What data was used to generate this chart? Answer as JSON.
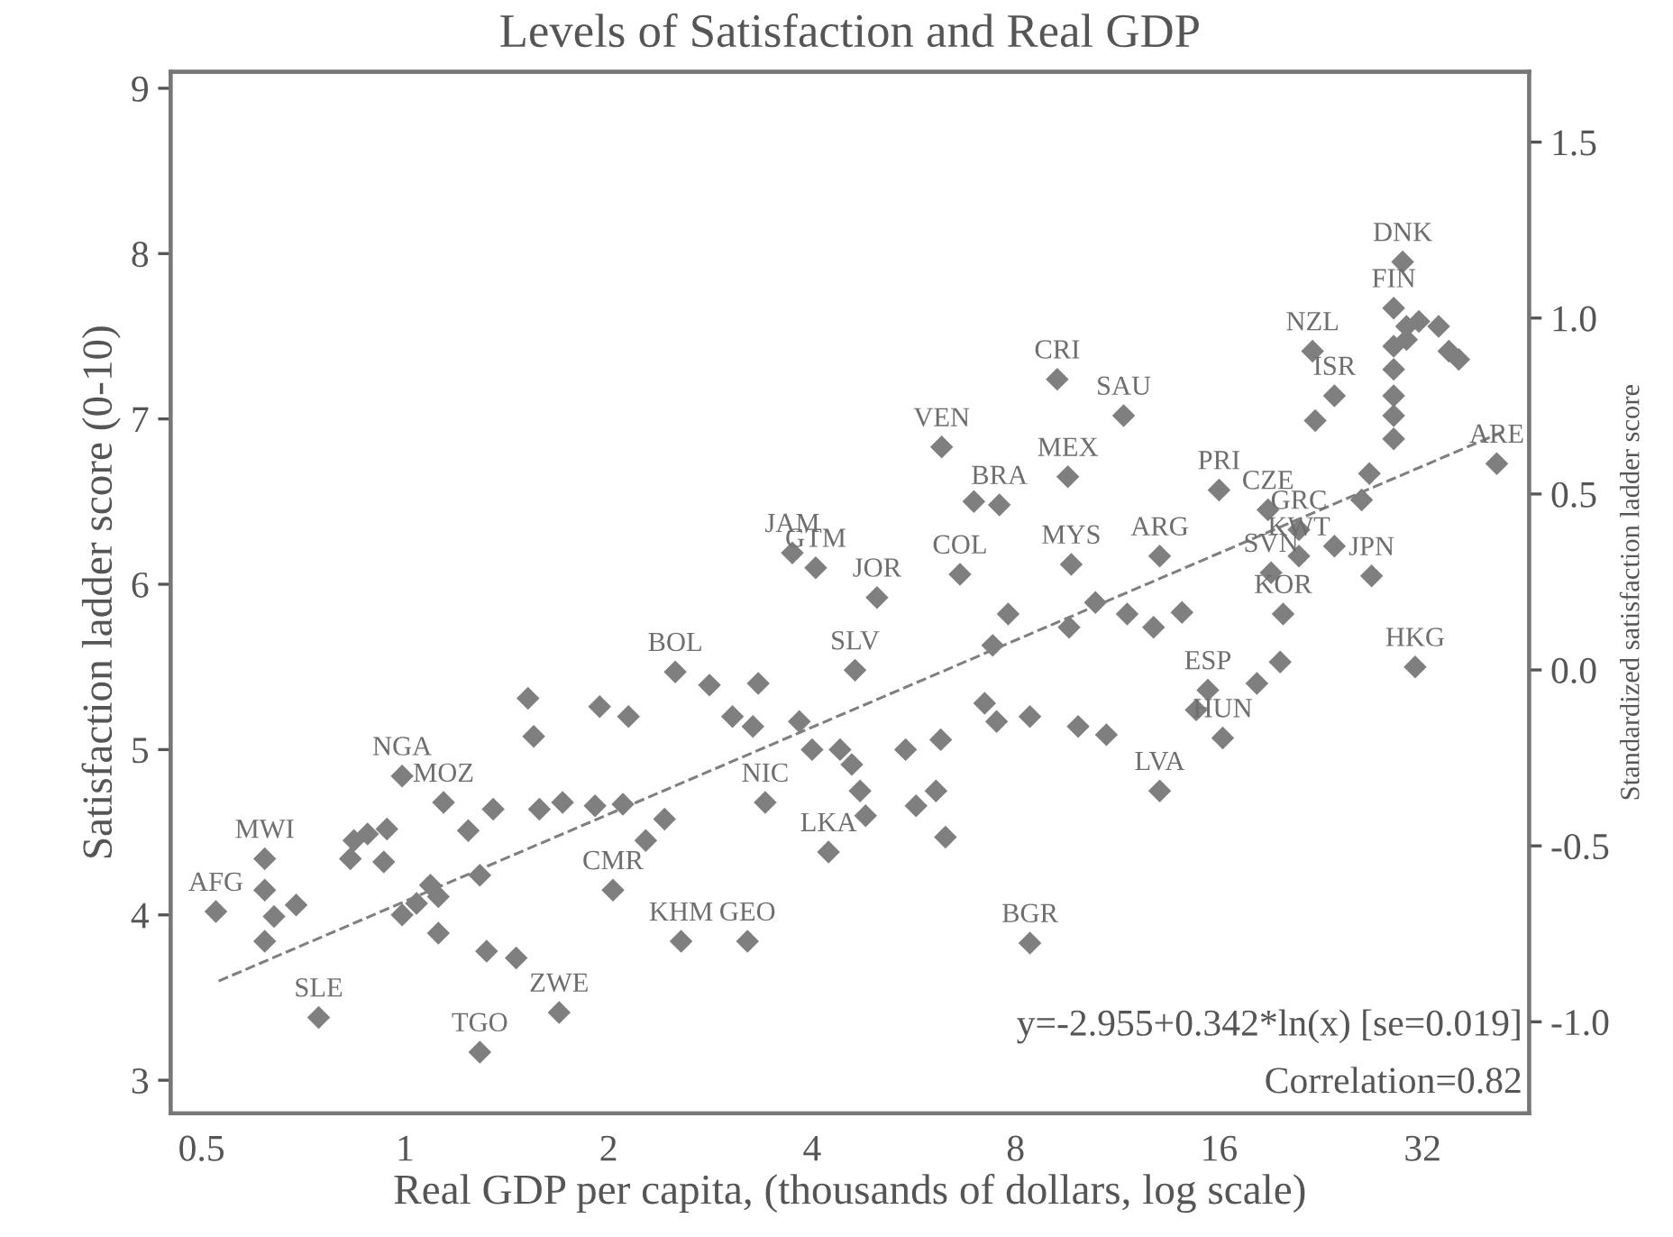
{
  "chart_data": {
    "type": "scatter",
    "title": "Levels of Satisfaction and Real GDP",
    "xlabel": "Real GDP per capita, (thousands of dollars, log scale)",
    "ylabel": "Satisfaction ladder score (0-10)",
    "y2label": "Standardized satisfaction ladder score",
    "log": "x",
    "grid": false,
    "legend": false,
    "marker": "diamond",
    "xlim": [
      0.45,
      46
    ],
    "xticks": [
      0.5,
      1,
      2,
      4,
      8,
      16,
      32
    ],
    "ylim": [
      2.8,
      9.1
    ],
    "yticks": [
      3,
      4,
      5,
      6,
      7,
      8,
      9
    ],
    "y2lim": [
      -1.26,
      1.7
    ],
    "y2ticks": [
      {
        "value": -1,
        "label": "-1.0"
      },
      -0.5,
      {
        "value": 0,
        "label": "0.0"
      },
      0.5,
      {
        "value": 1,
        "label": "1.0"
      },
      1.5
    ],
    "series": [
      {
        "color": "#7f7f7f",
        "x": [
          0.525,
          0.62,
          0.745,
          0.99,
          1.29,
          1.69,
          2.03,
          2.56,
          3.21,
          2.51,
          4.63,
          3.41,
          4.23,
          4.99,
          3.74,
          4.05,
          6.22,
          6.94,
          7.57,
          9.22,
          11.56,
          9.56,
          6.62,
          9.67,
          13.07,
          16,
          13.07,
          31.2,
          26.9,
          19.1,
          19.9,
          16.2,
          15.4,
          14.8,
          41.2,
          29.9,
          22.0,
          23.7,
          22.2,
          18.9,
          21.0,
          21.0,
          23.7,
          26.0,
          26.7,
          29.0,
          29.0,
          29.0,
          29.0,
          29.0,
          29.0,
          31.6,
          33.8,
          36.2,
          35.0,
          30.3,
          30.3,
          0.62,
          0.64,
          0.62,
          0.69,
          0.84,
          0.83,
          0.88,
          0.94,
          0.93,
          0.99,
          1.04,
          1.09,
          1.12,
          1.12,
          1.14,
          1.24,
          1.29,
          1.35,
          1.32,
          1.46,
          1.55,
          1.58,
          1.71,
          1.52,
          1.94,
          2.14,
          1.91,
          2.1,
          2.27,
          2.42,
          2.82,
          3.33,
          3.05,
          3.27,
          4.0,
          4.4,
          3.83,
          4.58,
          4.71,
          4.8,
          5.5,
          5.7,
          6.3,
          6.1,
          6.2,
          7.2,
          7.5,
          8.4,
          7.4,
          7.8,
          8.4,
          9.9,
          10.9,
          9.6,
          11.7,
          12.8,
          14.1,
          10.5,
          18.2,
          19.7
        ],
        "values": [
          4.02,
          4.34,
          3.38,
          4.84,
          3.17,
          3.41,
          4.15,
          3.84,
          3.84,
          5.47,
          5.48,
          4.68,
          4.38,
          5.92,
          6.19,
          6.1,
          6.83,
          6.5,
          6.48,
          7.24,
          7.02,
          6.65,
          6.06,
          6.12,
          6.17,
          6.57,
          4.75,
          5.5,
          6.05,
          6.07,
          5.82,
          5.07,
          5.36,
          5.24,
          6.73,
          7.95,
          7.41,
          7.14,
          6.99,
          6.45,
          6.33,
          6.17,
          6.23,
          6.51,
          6.67,
          7.67,
          7.44,
          7.3,
          7.14,
          7.02,
          6.88,
          7.59,
          7.56,
          7.36,
          7.41,
          7.56,
          7.48,
          4.15,
          3.99,
          3.84,
          4.06,
          4.45,
          4.34,
          4.49,
          4.52,
          4.32,
          4.0,
          4.07,
          4.18,
          4.11,
          3.89,
          4.68,
          4.51,
          4.24,
          4.64,
          3.78,
          3.74,
          5.08,
          4.64,
          4.68,
          5.31,
          5.26,
          5.2,
          4.66,
          4.67,
          4.45,
          4.58,
          5.39,
          5.4,
          5.2,
          5.14,
          5.0,
          5.0,
          5.17,
          4.91,
          4.75,
          4.6,
          5.0,
          4.66,
          4.47,
          4.75,
          5.06,
          5.28,
          5.17,
          5.2,
          5.63,
          5.82,
          3.83,
          5.14,
          5.09,
          5.74,
          5.82,
          5.74,
          5.83,
          5.89,
          5.4,
          5.53
        ]
      },
      {
        "type": "line",
        "color": "#7f7f7f",
        "line_style": "dashed",
        "marker": "none",
        "x": [
          0.53,
          42.5
        ],
        "values": [
          3.6,
          6.93
        ]
      }
    ],
    "annotations": [
      {
        "text": "AFG",
        "x": 0.525,
        "y": 4.02
      },
      {
        "text": "MWI",
        "x": 0.62,
        "y": 4.34
      },
      {
        "text": "SLE",
        "x": 0.745,
        "y": 3.38
      },
      {
        "text": "NGA",
        "x": 0.99,
        "y": 4.84
      },
      {
        "text": "MOZ",
        "x": 1.14,
        "y": 4.68
      },
      {
        "text": "TGO",
        "x": 1.29,
        "y": 3.17
      },
      {
        "text": "ZWE",
        "x": 1.69,
        "y": 3.41
      },
      {
        "text": "CMR",
        "x": 2.03,
        "y": 4.15
      },
      {
        "text": "KHM",
        "x": 2.56,
        "y": 3.84
      },
      {
        "text": "GEO",
        "x": 3.21,
        "y": 3.84
      },
      {
        "text": "BOL",
        "x": 2.51,
        "y": 5.47
      },
      {
        "text": "SLV",
        "x": 4.63,
        "y": 5.48
      },
      {
        "text": "NIC",
        "x": 3.41,
        "y": 4.68
      },
      {
        "text": "LKA",
        "x": 4.23,
        "y": 4.38
      },
      {
        "text": "JOR",
        "x": 4.99,
        "y": 5.92
      },
      {
        "text": "JAM",
        "x": 3.74,
        "y": 6.19
      },
      {
        "text": "GTM",
        "x": 4.05,
        "y": 6.1
      },
      {
        "text": "VEN",
        "x": 6.22,
        "y": 6.83
      },
      {
        "text": "BRA",
        "x": 7.57,
        "y": 6.48
      },
      {
        "text": "CRI",
        "x": 9.22,
        "y": 7.24
      },
      {
        "text": "SAU",
        "x": 11.56,
        "y": 7.02
      },
      {
        "text": "MEX",
        "x": 9.56,
        "y": 6.65
      },
      {
        "text": "COL",
        "x": 6.62,
        "y": 6.06
      },
      {
        "text": "MYS",
        "x": 9.67,
        "y": 6.12
      },
      {
        "text": "ARG",
        "x": 13.07,
        "y": 6.17
      },
      {
        "text": "PRI",
        "x": 16,
        "y": 6.57
      },
      {
        "text": "LVA",
        "x": 13.07,
        "y": 4.75
      },
      {
        "text": "BGR",
        "x": 8.4,
        "y": 3.83
      },
      {
        "text": "HKG",
        "x": 31.2,
        "y": 5.5
      },
      {
        "text": "JPN",
        "x": 26.9,
        "y": 6.05
      },
      {
        "text": "SVN",
        "x": 19.1,
        "y": 6.07
      },
      {
        "text": "KOR",
        "x": 19.9,
        "y": 5.82
      },
      {
        "text": "HUN",
        "x": 16.2,
        "y": 5.07
      },
      {
        "text": "ESP",
        "x": 15.4,
        "y": 5.36
      },
      {
        "text": "ARE",
        "x": 41.2,
        "y": 6.73
      },
      {
        "text": "DNK",
        "x": 29.9,
        "y": 7.95
      },
      {
        "text": "FIN",
        "x": 29.0,
        "y": 7.67
      },
      {
        "text": "NZL",
        "x": 22.0,
        "y": 7.41
      },
      {
        "text": "ISR",
        "x": 23.7,
        "y": 7.14
      },
      {
        "text": "CZE",
        "x": 18.9,
        "y": 6.45
      },
      {
        "text": "GRC",
        "x": 21.0,
        "y": 6.33
      },
      {
        "text": "KWT",
        "x": 21.0,
        "y": 6.17
      },
      "y=-2.955+0.342*ln(x) [se=0.019]",
      "Correlation=0.82"
    ]
  }
}
